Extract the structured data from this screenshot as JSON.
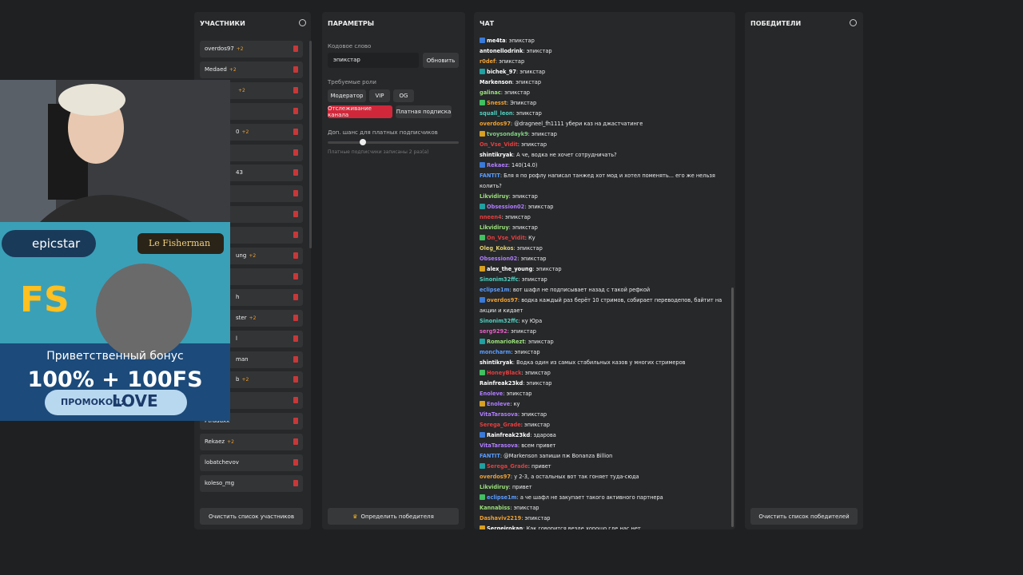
{
  "participants": {
    "title": "УЧАСТНИКИ",
    "items": [
      {
        "name": "overdos97",
        "badge": "+2"
      },
      {
        "name": "Medaed",
        "badge": "+2"
      },
      {
        "name": null,
        "badge": "+2"
      },
      {
        "name": null,
        "badge": null
      },
      {
        "name": "0",
        "badge": "+2"
      },
      {
        "name": null,
        "badge": null
      },
      {
        "name": "43",
        "badge": null
      },
      {
        "name": null,
        "badge": null
      },
      {
        "name": null,
        "badge": null
      },
      {
        "name": null,
        "badge": null
      },
      {
        "name": "ung",
        "badge": "+2"
      },
      {
        "name": null,
        "badge": null
      },
      {
        "name": "h",
        "badge": null
      },
      {
        "name": "ster",
        "badge": "+2"
      },
      {
        "name": "l",
        "badge": null
      },
      {
        "name": "man",
        "badge": null
      },
      {
        "name": "b",
        "badge": "+2"
      },
      {
        "name": null,
        "badge": null
      },
      {
        "name": "Ptraddxx",
        "badge": null
      },
      {
        "name": "Rekaez",
        "badge": "+2"
      },
      {
        "name": "lobatchevov",
        "badge": null
      },
      {
        "name": "koleso_mg",
        "badge": null
      }
    ],
    "clear_button": "Очистить список участников"
  },
  "params": {
    "title": "ПАРАМЕТРЫ",
    "code_label": "Кодовое слово",
    "code_value": "эпикстар",
    "update_button": "Обновить",
    "roles_label": "Требуемые роли",
    "roles": [
      "Модератор",
      "VIP",
      "OG"
    ],
    "tracking_button": "Отслеживание канала",
    "paid_button": "Платная подписка",
    "chance_label": "Доп. шанс для платных подписчиков",
    "chance_note": "Платные подписчики записаны 2 раз(а)",
    "pick_button": "Определить победителя"
  },
  "chat": {
    "title": "ЧАТ",
    "messages": [
      {
        "user": "me4ta",
        "color": "#ffffff",
        "text": "эпикстар"
      },
      {
        "user": "antonellodrink",
        "color": "#ffffff",
        "text": "эпикстар"
      },
      {
        "user": "r0def",
        "color": "#f0a030",
        "text": "эпикстар"
      },
      {
        "user": "bichek_97",
        "color": "#ffffff",
        "text": "эпикстар"
      },
      {
        "user": "Markenson",
        "color": "#ffffff",
        "text": "эпикстар"
      },
      {
        "user": "galinac",
        "color": "#9be07a",
        "text": "эпикстар"
      },
      {
        "user": "Snesst",
        "color": "#f0a030",
        "text": "Эпикстар"
      },
      {
        "user": "squall_leon",
        "color": "#4fd0c0",
        "text": "эпикстар"
      },
      {
        "user": "overdos97",
        "color": "#f0a030",
        "text": "@dragneel_fh1111 убери каз на джастчатинге"
      },
      {
        "user": "tvoysondayk9",
        "color": "#7fd07f",
        "text": "эпикстар"
      },
      {
        "user": "On_Vse_Vidit",
        "color": "#e83c3c",
        "text": "эпикстар"
      },
      {
        "user": "shintikryak",
        "color": "#ffffff",
        "text": "А че, водка не хочет сотрудничать?"
      },
      {
        "user": "Rekaez",
        "color": "#b07cff",
        "text": "140(14.0)"
      },
      {
        "user": "FANTIT",
        "color": "#5a9cff",
        "text": "Бля я по рофлу написал танжед хот мод и хотел поменять... его же нельзя колить?"
      },
      {
        "user": "Likvidiruy",
        "color": "#9be07a",
        "text": "эпикстар"
      },
      {
        "user": "Obsession02",
        "color": "#b07cff",
        "text": "эпикстар"
      },
      {
        "user": "nneen4",
        "color": "#e83c3c",
        "text": "эпикстар"
      },
      {
        "user": "Likvidiruy",
        "color": "#9be07a",
        "text": "эпикстар"
      },
      {
        "user": "On_Vse_Vidit",
        "color": "#e83c3c",
        "text": "Ку"
      },
      {
        "user": "Oleg_Kokos",
        "color": "#e0d070",
        "text": "эпикстар"
      },
      {
        "user": "Obsession02",
        "color": "#b07cff",
        "text": "эпикстар"
      },
      {
        "user": "alex_the_young",
        "color": "#ffffff",
        "text": "эпикстар"
      },
      {
        "user": "Sinonim32ffc",
        "color": "#4fd0c0",
        "text": "эпикстар"
      },
      {
        "user": "eclipse1m",
        "color": "#5a9cff",
        "text": "вот шафл не подписывает назад с такой рефкой"
      },
      {
        "user": "overdos97",
        "color": "#f0a030",
        "text": "водка каждый раз берёт 10 стримов, собирает переводепов, байтит на акции и кидает"
      },
      {
        "user": "Sinonim32ffc",
        "color": "#4fd0c0",
        "text": "ку Юра"
      },
      {
        "user": "serg9292",
        "color": "#e060c0",
        "text": "эпикстар"
      },
      {
        "user": "RomarioRezt",
        "color": "#9be07a",
        "text": "эпикстар"
      },
      {
        "user": "moncharm",
        "color": "#5a9cff",
        "text": "эпикстар"
      },
      {
        "user": "shintikryak",
        "color": "#ffffff",
        "text": "Водка один из самых стабильных казов у многих стримеров"
      },
      {
        "user": "HoneyBlack",
        "color": "#e83c3c",
        "text": "эпикстар"
      },
      {
        "user": "Rainfreak23kd",
        "color": "#ffffff",
        "text": "эпикстар"
      },
      {
        "user": "Enoleve",
        "color": "#b07cff",
        "text": "эпикстар"
      },
      {
        "user": "Enoleve",
        "color": "#b07cff",
        "text": "ку"
      },
      {
        "user": "VitaTarasova",
        "color": "#b07cff",
        "text": "эпикстар"
      },
      {
        "user": "Serega_Grade",
        "color": "#e83c3c",
        "text": "эпикстар"
      },
      {
        "user": "Rainfreak23kd",
        "color": "#ffffff",
        "text": "здарова"
      },
      {
        "user": "VitaTarasova",
        "color": "#b07cff",
        "text": "всем привет"
      },
      {
        "user": "FANTIT",
        "color": "#5a9cff",
        "text": "@Markenson запиши пж Bonanza Billion"
      },
      {
        "user": "Serega_Grade",
        "color": "#e83c3c",
        "text": "привет"
      },
      {
        "user": "overdos97",
        "color": "#f0a030",
        "text": "у 2-3, а остальных вот так гоняет туда-сюда"
      },
      {
        "user": "Likvidiruy",
        "color": "#9be07a",
        "text": "привет"
      },
      {
        "user": "eclipse1m",
        "color": "#5a9cff",
        "text": "а че шафл не закупает такого активного партнера"
      },
      {
        "user": "Kannabiss",
        "color": "#9be07a",
        "text": "эпикстар"
      },
      {
        "user": "Dashaviv2219",
        "color": "#f0a030",
        "text": "эпикстар"
      },
      {
        "user": "Sergeirokan",
        "color": "#ffffff",
        "text": "Как говорится везде хорошо где нас нет"
      }
    ]
  },
  "winners": {
    "title": "ПОБЕДИТЕЛИ",
    "clear_button": "Очистить список победителей"
  },
  "overlay": {
    "brand": "epicstar",
    "game": "Le Fisherman",
    "logo": "FS",
    "bonus": "Приветственный бонус",
    "offer": "100% + 100FS",
    "promo_label": "ПРОМОКОД:",
    "promo_code": "LOVE"
  }
}
